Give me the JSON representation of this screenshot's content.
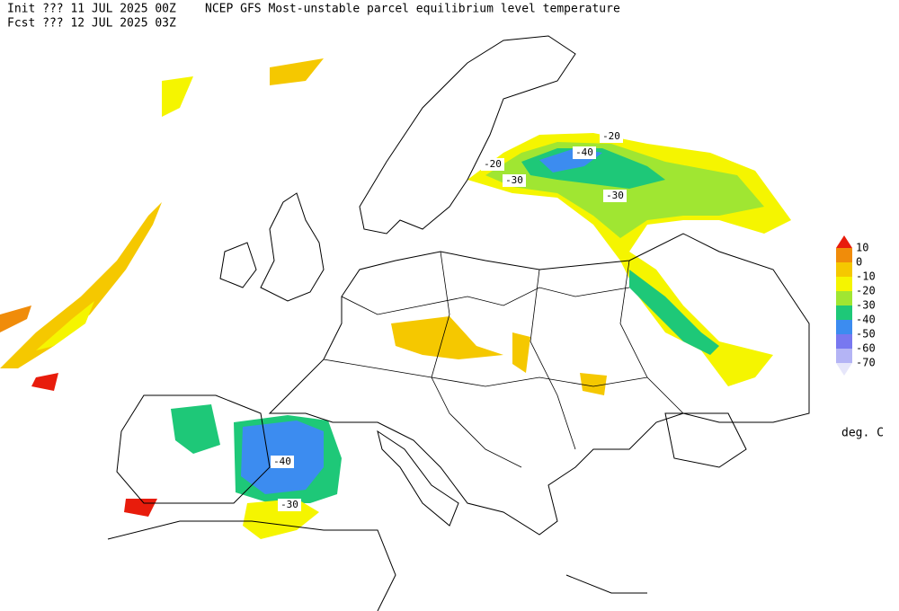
{
  "header": {
    "init": "Init  ??? 11 JUL 2025 00Z",
    "title": "NCEP GFS Most-unstable parcel equilibrium level temperature",
    "forecast": "Fcst ??? 12 JUL 2025 03Z"
  },
  "colorbar": {
    "levels": [
      10,
      0,
      -10,
      -20,
      -30,
      -40,
      -50,
      -60,
      -70
    ],
    "colors": [
      "#e81c0c",
      "#f08c0a",
      "#f5c800",
      "#f5f500",
      "#a0e632",
      "#1ec878",
      "#3c8cf0",
      "#7878f0",
      "#b4b4f5",
      "#e6e6fa"
    ],
    "unit": "deg. C"
  },
  "contour_labels": [
    "-20",
    "-20",
    "-40",
    "-30",
    "-30",
    "-40",
    "-30"
  ]
}
